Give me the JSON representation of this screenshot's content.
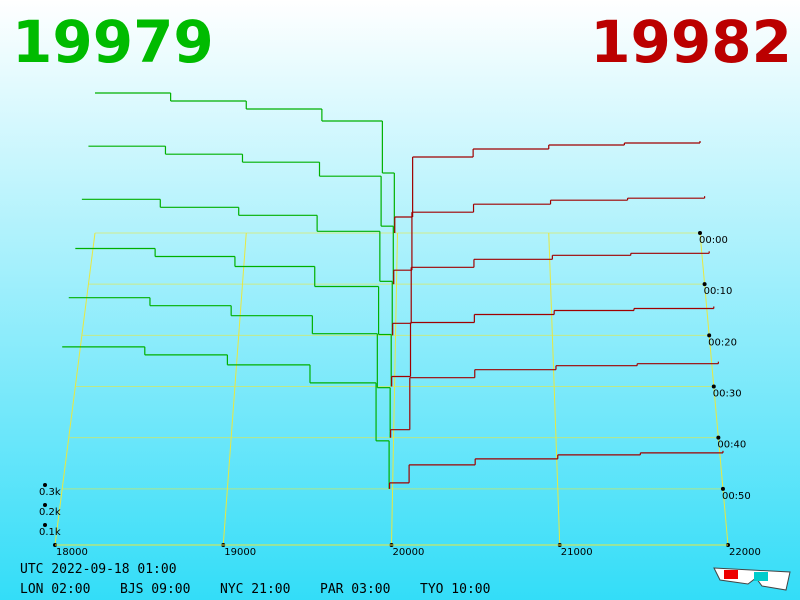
{
  "bid_price": 19979,
  "ask_price": 19982,
  "chart_data": {
    "type": "depth3d",
    "xlim": [
      18000,
      22000
    ],
    "xticks": [
      18000,
      19000,
      20000,
      21000,
      22000
    ],
    "zticks": [
      {
        "value": 100,
        "label": "0.1k"
      },
      {
        "value": 200,
        "label": "0.2k"
      },
      {
        "value": 300,
        "label": "0.3k"
      }
    ],
    "times": [
      "00:00",
      "00:10",
      "00:20",
      "00:30",
      "00:40",
      "00:50"
    ],
    "series": [
      {
        "color": "#00b000",
        "prices": [
          18000,
          18500,
          19000,
          19500,
          19900,
          19979
        ],
        "values": [
          [
            700,
            660,
            620,
            560,
            300,
            60
          ],
          [
            690,
            650,
            610,
            540,
            290,
            50
          ],
          [
            680,
            640,
            600,
            520,
            270,
            40
          ],
          [
            690,
            650,
            600,
            500,
            260,
            40
          ],
          [
            700,
            660,
            610,
            520,
            250,
            30
          ],
          [
            710,
            670,
            620,
            530,
            240,
            30
          ]
        ]
      },
      {
        "color": "#a00000",
        "prices": [
          19982,
          20100,
          20500,
          21000,
          21500,
          22000
        ],
        "values": [
          [
            80,
            380,
            420,
            440,
            450,
            460
          ],
          [
            70,
            360,
            400,
            420,
            430,
            440
          ],
          [
            60,
            340,
            380,
            400,
            410,
            420
          ],
          [
            50,
            320,
            360,
            380,
            390,
            400
          ],
          [
            40,
            300,
            340,
            360,
            370,
            380
          ],
          [
            30,
            120,
            150,
            170,
            180,
            190
          ]
        ]
      }
    ]
  },
  "footer": {
    "utc": "UTC 2022-09-18 01:00",
    "cities": [
      "LON 02:00",
      "BJS 09:00",
      "NYC 21:00",
      "PAR 03:00",
      "TYO 10:00"
    ]
  }
}
